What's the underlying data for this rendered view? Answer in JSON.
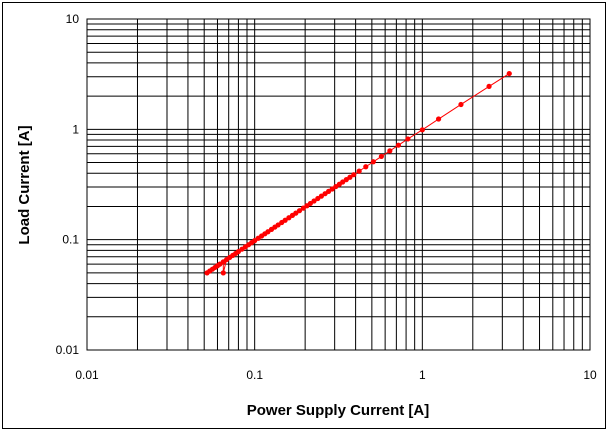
{
  "chart_data": {
    "type": "scatter",
    "title": "",
    "xlabel": "Power Supply Current [A]",
    "ylabel": "Load Current [A]",
    "x_scale": "log",
    "y_scale": "log",
    "xlim": [
      0.01,
      10
    ],
    "ylim": [
      0.01,
      10
    ],
    "x_tick_labels": [
      "0.01",
      "0.1",
      "1",
      "10"
    ],
    "y_tick_labels": [
      "0.01",
      "0.1",
      "1",
      "10"
    ],
    "grid": true,
    "legend": "none",
    "series_color": "#ff0000",
    "series": [
      {
        "x": [
          0.052,
          0.054,
          0.056,
          0.058,
          0.06,
          0.062,
          0.065,
          0.068,
          0.071,
          0.074,
          0.077,
          0.08,
          0.084,
          0.088,
          0.092,
          0.096,
          0.1,
          0.105,
          0.11,
          0.115,
          0.12,
          0.126,
          0.132,
          0.138,
          0.145,
          0.152,
          0.16,
          0.168,
          0.176,
          0.185,
          0.195,
          0.205,
          0.215,
          0.226,
          0.238,
          0.25,
          0.263,
          0.276,
          0.29,
          0.305,
          0.32,
          0.335,
          0.352,
          0.37,
          0.39,
          0.42,
          0.46,
          0.51,
          0.57,
          0.64,
          0.72,
          0.82,
          1.0,
          1.25,
          1.7,
          2.5,
          3.3,
          0.065
        ],
        "y": [
          0.05,
          0.052,
          0.054,
          0.056,
          0.058,
          0.06,
          0.063,
          0.066,
          0.069,
          0.072,
          0.075,
          0.078,
          0.082,
          0.086,
          0.09,
          0.094,
          0.098,
          0.103,
          0.108,
          0.113,
          0.118,
          0.124,
          0.13,
          0.136,
          0.143,
          0.15,
          0.158,
          0.166,
          0.174,
          0.183,
          0.193,
          0.203,
          0.213,
          0.224,
          0.236,
          0.248,
          0.261,
          0.274,
          0.288,
          0.303,
          0.318,
          0.333,
          0.35,
          0.368,
          0.388,
          0.418,
          0.458,
          0.508,
          0.568,
          0.638,
          0.718,
          0.818,
          0.99,
          1.24,
          1.68,
          2.45,
          3.2,
          0.05
        ]
      }
    ]
  }
}
